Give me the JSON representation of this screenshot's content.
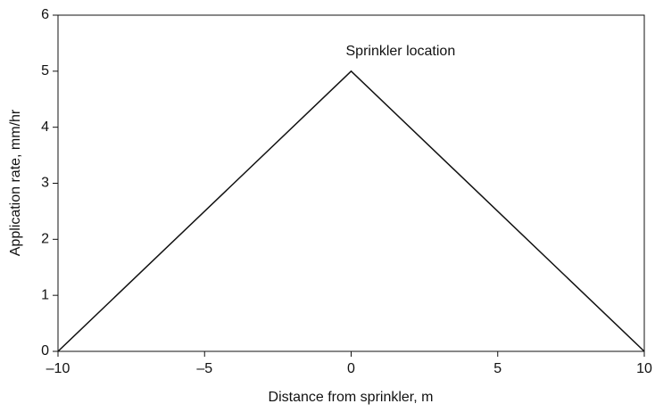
{
  "chart_data": {
    "type": "line",
    "x_label": "Distance from sprinkler, m",
    "y_label": "Application rate, mm/hr",
    "annotation": "Sprinkler location",
    "x": [
      -10,
      0,
      10
    ],
    "series": [
      {
        "color": "#111111",
        "values": [
          0,
          5,
          0
        ]
      }
    ],
    "xlim": [
      -10,
      10
    ],
    "xticks": [
      {
        "value": -10,
        "label": "–10"
      },
      {
        "value": -5,
        "label": "–5"
      },
      0,
      5,
      10
    ],
    "ylim": [
      0,
      6
    ],
    "yticks": [
      0,
      1,
      2,
      3,
      4,
      5,
      6
    ],
    "grid": false
  }
}
